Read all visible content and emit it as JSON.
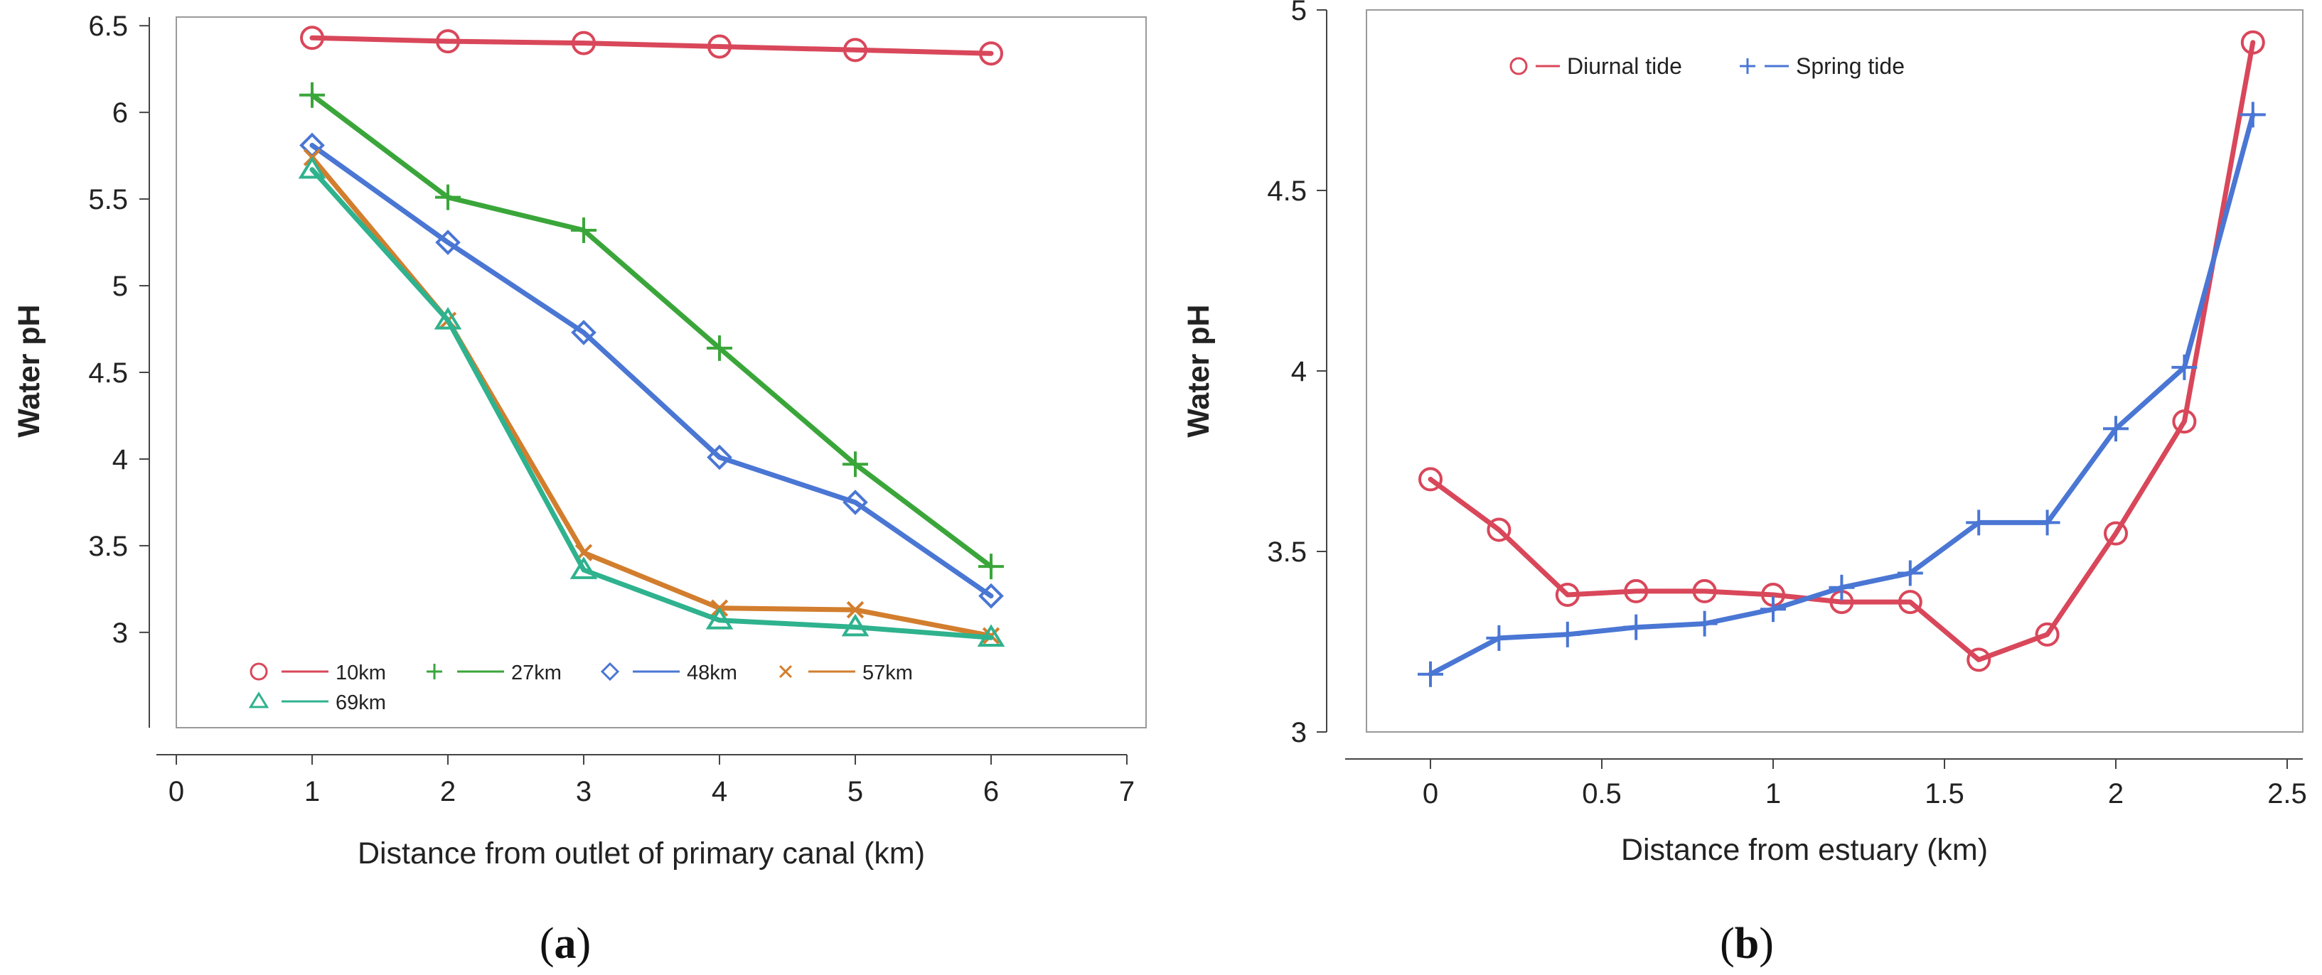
{
  "chart_data": [
    {
      "type": "line",
      "panel_label": "(a)",
      "panel_letter": "a",
      "xlabel": "Distance from outlet of primary canal (km)",
      "ylabel": "Water pH",
      "xlim": [
        0,
        7
      ],
      "ylim": [
        2.45,
        6.55
      ],
      "xticks": [
        0,
        1,
        2,
        3,
        4,
        5,
        6,
        7
      ],
      "xtick_labels": [
        "0",
        "1",
        "2",
        "3",
        "4",
        "5",
        "6",
        "7"
      ],
      "yticks": [
        3,
        3.5,
        4,
        4.5,
        5,
        5.5,
        6,
        6.5
      ],
      "ytick_labels": [
        "3",
        "3.5",
        "4",
        "4.5",
        "5",
        "5.5",
        "6",
        "6.5"
      ],
      "grid": false,
      "legend_position": "bottom-left",
      "series": [
        {
          "name": "10km",
          "marker": "circle",
          "color": "#d9475a",
          "x": [
            1,
            2,
            3,
            4,
            5,
            6
          ],
          "values": [
            6.43,
            6.41,
            6.4,
            6.38,
            6.36,
            6.34
          ]
        },
        {
          "name": "27km",
          "marker": "plus",
          "color": "#3aa63a",
          "x": [
            1,
            2,
            3,
            4,
            5,
            6
          ],
          "values": [
            6.1,
            5.51,
            5.32,
            4.64,
            3.97,
            3.38
          ]
        },
        {
          "name": "48km",
          "marker": "diamond",
          "color": "#4a76d4",
          "x": [
            1,
            2,
            3,
            4,
            5,
            6
          ],
          "values": [
            5.81,
            5.25,
            4.73,
            4.01,
            3.75,
            3.21
          ]
        },
        {
          "name": "57km",
          "marker": "x",
          "color": "#d27e2e",
          "x": [
            1,
            2,
            3,
            4,
            5,
            6
          ],
          "values": [
            5.74,
            4.8,
            3.46,
            3.14,
            3.13,
            2.98
          ]
        },
        {
          "name": "69km",
          "marker": "triangle",
          "color": "#2fb28e",
          "x": [
            1,
            2,
            3,
            4,
            5,
            6
          ],
          "values": [
            5.67,
            4.8,
            3.36,
            3.07,
            3.03,
            2.97
          ]
        }
      ]
    },
    {
      "type": "line",
      "panel_label": "(b)",
      "panel_letter": "b",
      "xlabel": "Distance from estuary (km)",
      "ylabel": "Water pH",
      "xlim": [
        -0.25,
        2.55
      ],
      "ylim": [
        3.0,
        5.0
      ],
      "xticks": [
        0,
        0.5,
        1,
        1.5,
        2,
        2.5
      ],
      "xtick_labels": [
        "0",
        "0.5",
        "1",
        "1.5",
        "2",
        "2.5"
      ],
      "yticks": [
        3,
        3.5,
        4,
        4.5,
        5
      ],
      "ytick_labels": [
        "3",
        "3.5",
        "4",
        "4.5",
        "5"
      ],
      "grid": false,
      "legend_position": "top-left",
      "series": [
        {
          "name": "Diurnal tide",
          "marker": "circle",
          "color": "#d9475a",
          "x": [
            0,
            0.2,
            0.4,
            0.6,
            0.8,
            1.0,
            1.2,
            1.4,
            1.6,
            1.8,
            2.0,
            2.2,
            2.4
          ],
          "values": [
            3.7,
            3.56,
            3.38,
            3.39,
            3.39,
            3.38,
            3.36,
            3.36,
            3.2,
            3.27,
            3.55,
            3.86,
            4.91
          ]
        },
        {
          "name": "Spring tide",
          "marker": "plus",
          "color": "#4a76d4",
          "x": [
            0,
            0.2,
            0.4,
            0.6,
            0.8,
            1.0,
            1.2,
            1.4,
            1.6,
            1.8,
            2.0,
            2.2,
            2.4
          ],
          "values": [
            3.16,
            3.26,
            3.27,
            3.29,
            3.3,
            3.34,
            3.4,
            3.44,
            3.58,
            3.58,
            3.84,
            4.01,
            4.71
          ]
        }
      ]
    }
  ]
}
